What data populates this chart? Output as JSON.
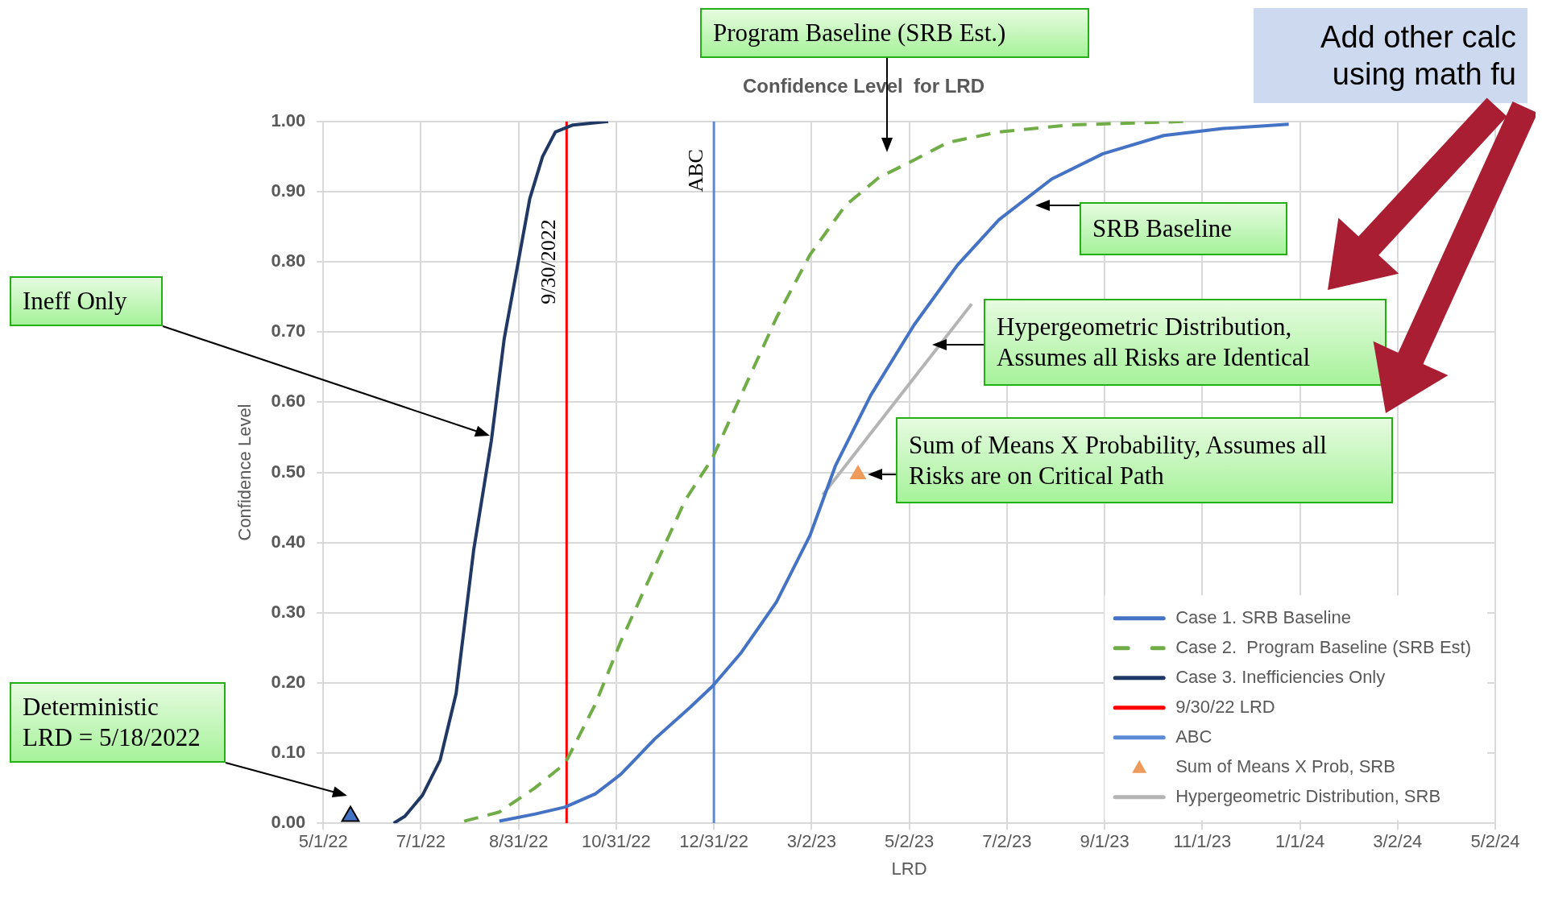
{
  "chart_data": {
    "type": "line",
    "title": "Confidence Level  for LRD",
    "xlabel": "LRD",
    "ylabel": "Confidence Level",
    "xlim": [
      "2022-05-01",
      "2024-05-02"
    ],
    "xticks": [
      {
        "value": "2022-05-01",
        "label": "5/1/22"
      },
      {
        "value": "2022-07-01",
        "label": "7/1/22"
      },
      {
        "value": "2022-08-31",
        "label": "8/31/22"
      },
      {
        "value": "2022-10-31",
        "label": "10/31/22"
      },
      {
        "value": "2022-12-31",
        "label": "12/31/22"
      },
      {
        "value": "2023-03-02",
        "label": "3/2/23"
      },
      {
        "value": "2023-05-02",
        "label": "5/2/23"
      },
      {
        "value": "2023-07-02",
        "label": "7/2/23"
      },
      {
        "value": "2023-09-01",
        "label": "9/1/23"
      },
      {
        "value": "2023-11-01",
        "label": "11/1/23"
      },
      {
        "value": "2024-01-01",
        "label": "1/1/24"
      },
      {
        "value": "2024-03-02",
        "label": "3/2/24"
      },
      {
        "value": "2024-05-02",
        "label": "5/2/24"
      }
    ],
    "ylim": [
      0,
      1
    ],
    "yticks": [
      {
        "value": 0,
        "label": "0.00"
      },
      {
        "value": 0.1,
        "label": "0.10"
      },
      {
        "value": 0.2,
        "label": "0.20"
      },
      {
        "value": 0.3,
        "label": "0.30"
      },
      {
        "value": 0.4,
        "label": "0.40"
      },
      {
        "value": 0.5,
        "label": "0.50"
      },
      {
        "value": 0.6,
        "label": "0.60"
      },
      {
        "value": 0.7,
        "label": "0.70"
      },
      {
        "value": 0.8,
        "label": "0.80"
      },
      {
        "value": 0.9,
        "label": "0.90"
      },
      {
        "value": 1,
        "label": "1.00"
      }
    ],
    "grid": true,
    "legend": "bottom right",
    "series": [
      {
        "name": "Case 1. SRB Baseline",
        "color": "#4472c4",
        "line_style": "solid",
        "x": [
          "2022-08-19",
          "2022-09-10",
          "2022-09-29",
          "2022-10-18",
          "2022-11-03",
          "2022-11-24",
          "2022-12-16",
          "2022-12-30",
          "2023-01-17",
          "2023-02-08",
          "2023-03-01",
          "2023-03-17",
          "2023-04-08",
          "2023-05-05",
          "2023-06-01",
          "2023-06-27",
          "2023-07-30",
          "2023-08-31",
          "2023-10-08",
          "2023-11-14",
          "2023-12-25"
        ],
        "values": [
          0.003,
          0.013,
          0.023,
          0.042,
          0.07,
          0.12,
          0.165,
          0.195,
          0.243,
          0.315,
          0.41,
          0.51,
          0.61,
          0.71,
          0.795,
          0.86,
          0.918,
          0.954,
          0.98,
          0.99,
          0.996
        ]
      },
      {
        "name": "Case 2.  Program Baseline (SRB Est)",
        "color": "#70ad47",
        "line_style": "dashed",
        "x": [
          "2022-07-28",
          "2022-08-19",
          "2022-09-10",
          "2022-09-29",
          "2022-10-18",
          "2022-11-03",
          "2022-11-24",
          "2022-12-13",
          "2022-12-30",
          "2023-01-17",
          "2023-02-08",
          "2023-03-01",
          "2023-03-23",
          "2023-04-13",
          "2023-05-05",
          "2023-05-26",
          "2023-06-27",
          "2023-08-10",
          "2023-10-21"
        ],
        "values": [
          0.003,
          0.016,
          0.05,
          0.085,
          0.17,
          0.26,
          0.365,
          0.46,
          0.52,
          0.61,
          0.72,
          0.81,
          0.88,
          0.92,
          0.945,
          0.97,
          0.985,
          0.995,
          1
        ]
      },
      {
        "name": "Case 3. Inefficiencies Only",
        "color": "#203864",
        "line_style": "solid",
        "x": [
          "2022-06-14",
          "2022-06-21",
          "2022-07-02",
          "2022-07-13",
          "2022-07-23",
          "2022-08-03",
          "2022-08-14",
          "2022-08-22",
          "2022-08-30",
          "2022-09-07",
          "2022-09-15",
          "2022-09-23",
          "2022-10-04",
          "2022-10-26"
        ],
        "values": [
          0,
          0.01,
          0.04,
          0.09,
          0.185,
          0.39,
          0.545,
          0.69,
          0.79,
          0.89,
          0.95,
          0.985,
          0.995,
          1
        ]
      },
      {
        "name": "9/30/22 LRD",
        "color": "#ff0000",
        "line_style": "solid",
        "x": [
          "2022-09-30",
          "2022-09-30"
        ],
        "values": [
          0,
          1
        ]
      },
      {
        "name": "ABC",
        "color": "#5b8bd6",
        "line_style": "solid",
        "x": [
          "2022-12-31",
          "2022-12-31"
        ],
        "values": [
          0,
          1
        ]
      },
      {
        "name": "Sum of Means X Prob, SRB",
        "type": "scatter",
        "color": "#ed9a5a",
        "marker": "triangle",
        "x": [
          "2023-03-31"
        ],
        "values": [
          0.497
        ]
      },
      {
        "name": "Hypergeometric Distribution, SRB",
        "color": "#b4b4b4",
        "line_style": "solid",
        "x": [
          "2023-03-09",
          "2023-06-10"
        ],
        "values": [
          0.468,
          0.74
        ]
      },
      {
        "type": "scatter",
        "color": "#4472c4",
        "marker": "triangle",
        "x": [
          "2022-05-18"
        ],
        "values": [
          0.01
        ]
      }
    ],
    "annotations": [
      "Program Baseline (SRB Est.)",
      "SRB Baseline",
      "Hypergeometric Distribution, Assumes all Risks are Identical",
      {
        "text": "Sum of Means X Probability, Assumes all Risks are on Critical Path",
        "x": "2023-03-31",
        "y": 0.497
      },
      "Ineff Only",
      "Deterministic LRD = 5/18/2022",
      "Add other calc using math fu",
      {
        "text": "9/30/2022",
        "x": "2022-09-30",
        "y": 0.8
      },
      {
        "text": "ABC",
        "x": "2022-12-31",
        "y": 0.93
      }
    ]
  }
}
